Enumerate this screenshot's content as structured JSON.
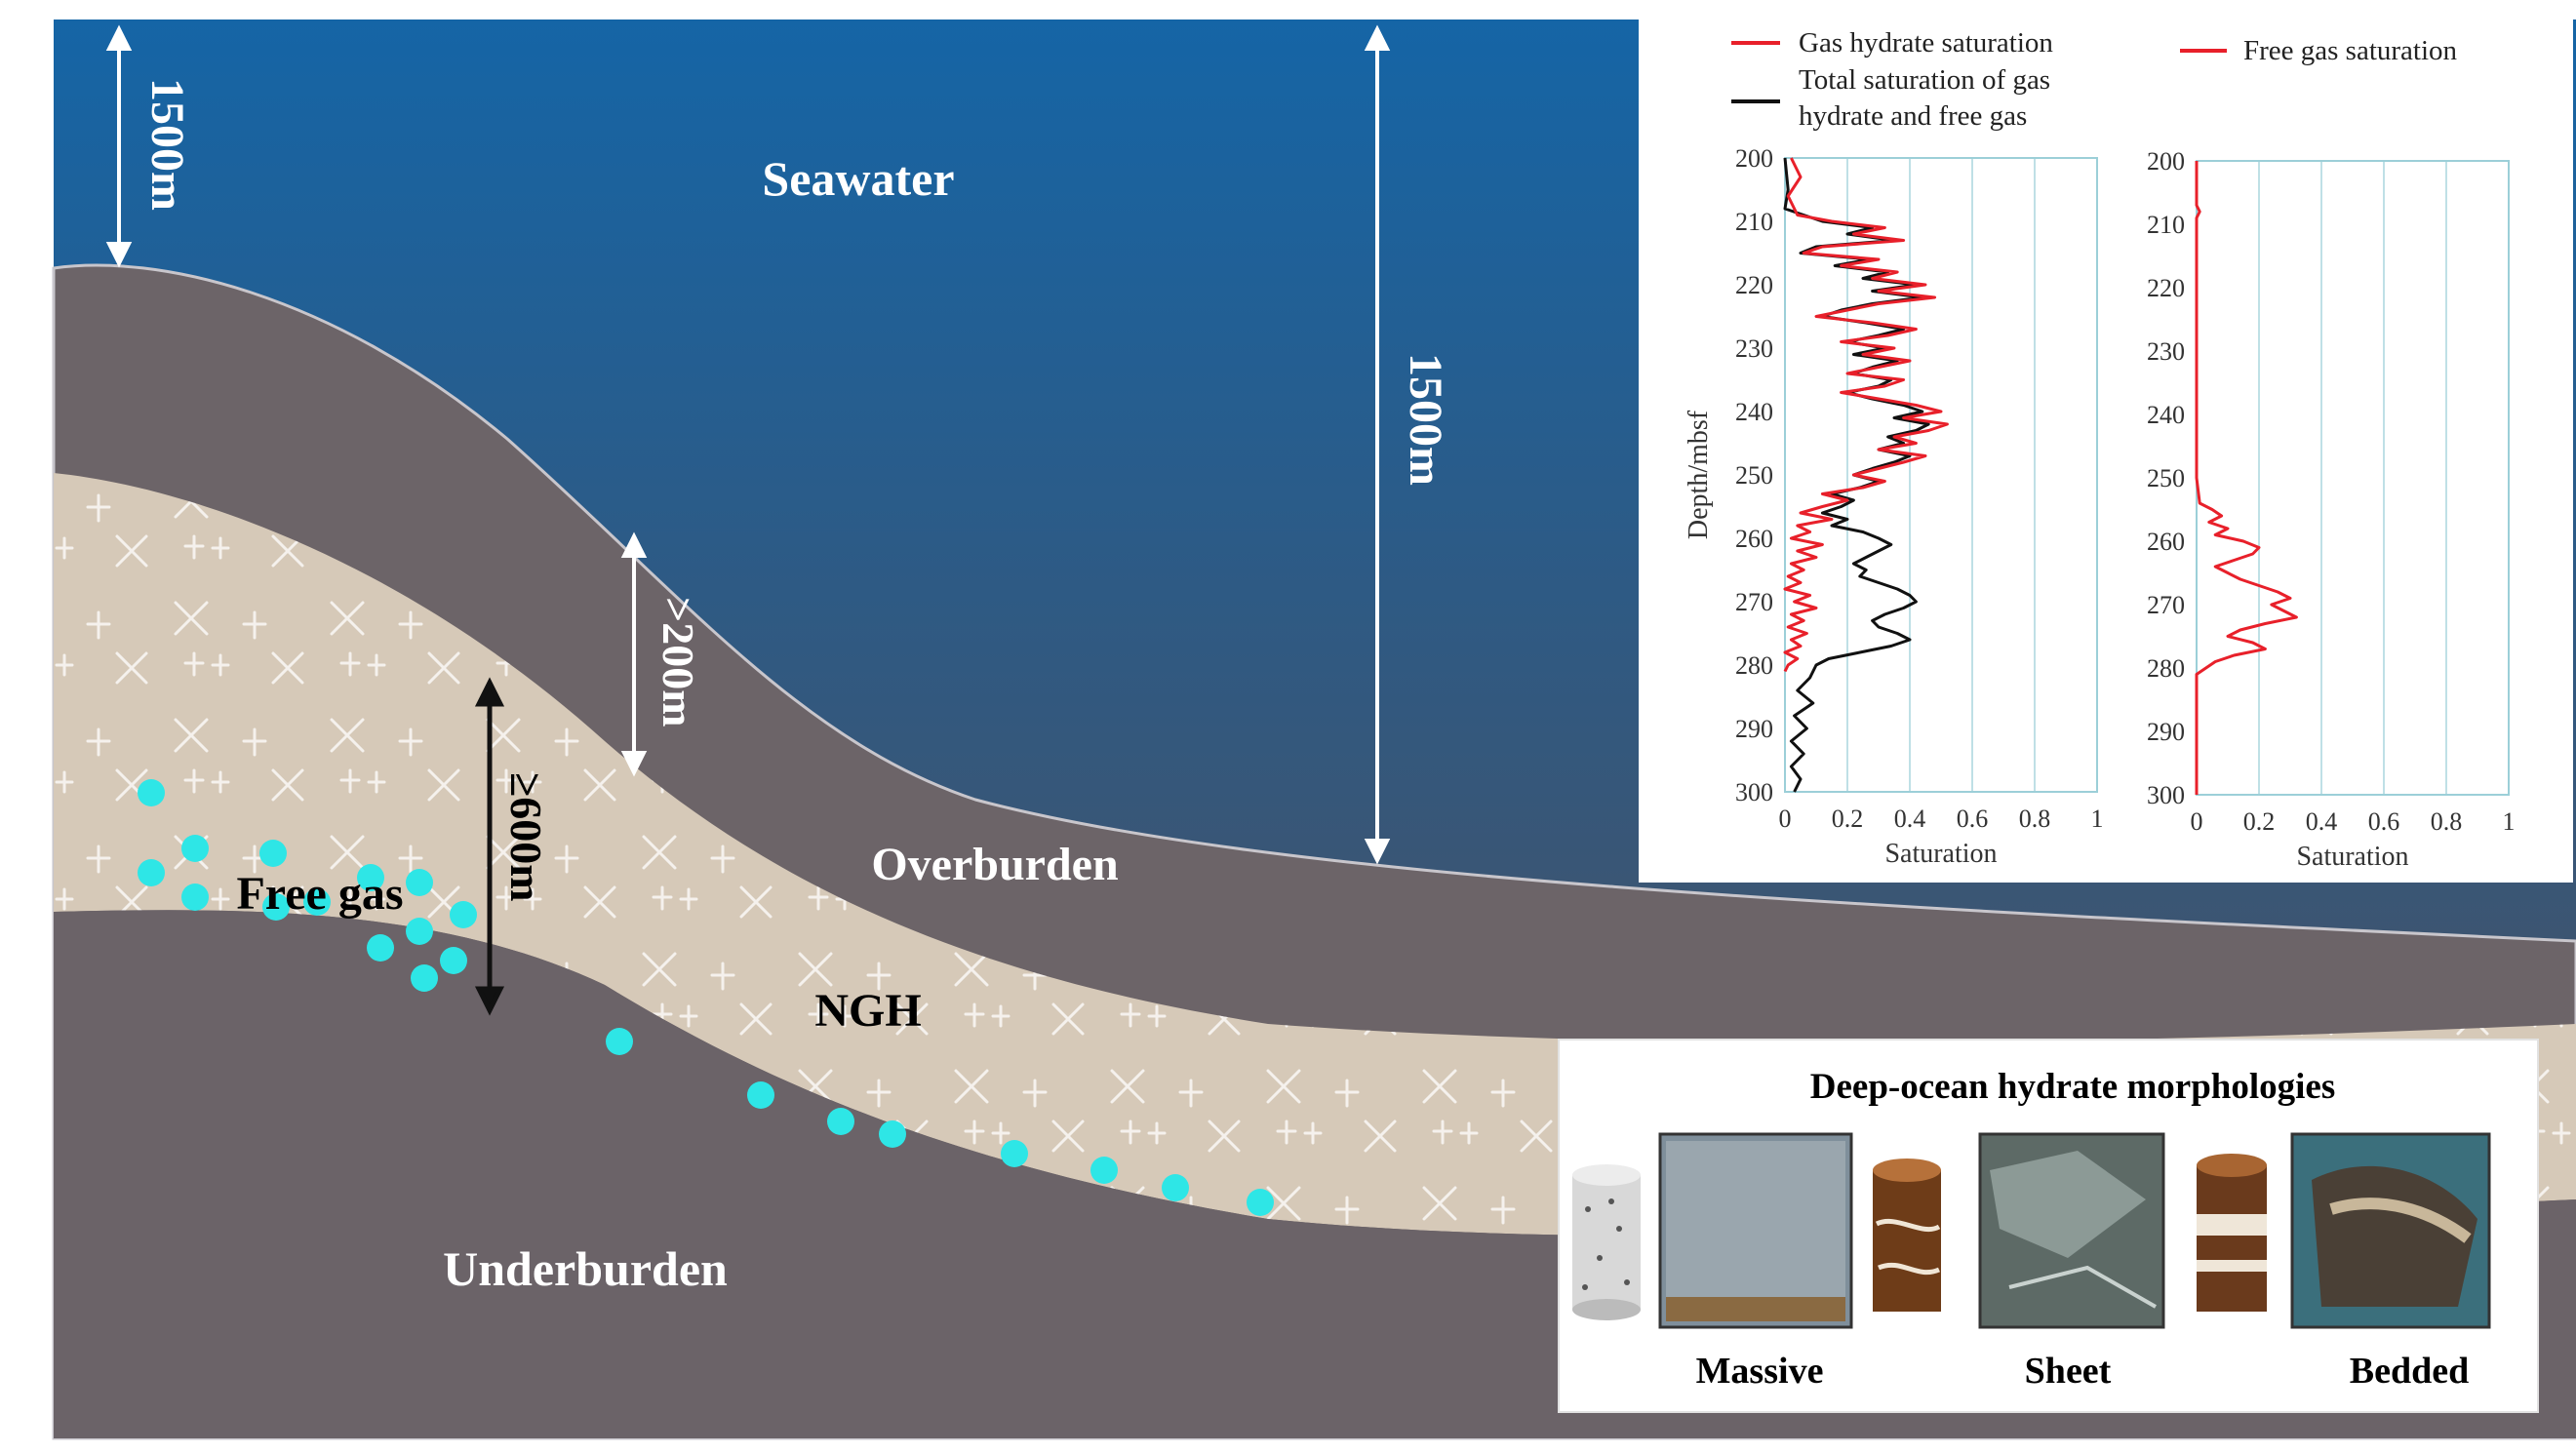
{
  "labels": {
    "seawater": "Seawater",
    "overburden": "Overburden",
    "ngh": "NGH",
    "underburden": "Underburden",
    "free_gas": "Free gas",
    "depth_left": "1500m",
    "depth_right": "1500m",
    "overburden_thickness": ">200m",
    "ngh_thickness": "≥600m"
  },
  "colors": {
    "sea_top": "#1c6aa8",
    "sea_bottom": "#3d4a5c",
    "sediment": "#6c6468",
    "hydrate_layer": "#d6c9b8",
    "gas_bubble": "#2ee6e6",
    "hydrate_saturation": "#e8202a",
    "total_saturation": "#111111",
    "free_gas_saturation": "#e8202a"
  },
  "morphologies": {
    "title": "Deep-ocean hydrate morphologies",
    "items": [
      {
        "label": "Massive"
      },
      {
        "label": "Sheet"
      },
      {
        "label": "Bedded"
      }
    ]
  },
  "chart_data": [
    {
      "type": "line",
      "ylabel": "Depth/mbsf",
      "xlabel": "Saturation",
      "ylim": [
        200,
        300
      ],
      "xlim": [
        0,
        1
      ],
      "yticks": [
        "200",
        "210",
        "220",
        "230",
        "240",
        "250",
        "260",
        "270",
        "280",
        "290",
        "300"
      ],
      "xticks": [
        "0",
        "0.2",
        "0.4",
        "0.6",
        "0.8",
        "1"
      ],
      "grid": true,
      "legend": [
        "Gas hydrate saturation",
        "Total saturation of gas hydrate and free gas"
      ],
      "series": [
        {
          "name": "Gas hydrate saturation",
          "points": [
            [
              200,
              0.02
            ],
            [
              203,
              0.05
            ],
            [
              206,
              0.01
            ],
            [
              209,
              0.04
            ],
            [
              210,
              0.15
            ],
            [
              211,
              0.32
            ],
            [
              212,
              0.22
            ],
            [
              213,
              0.38
            ],
            [
              214,
              0.12
            ],
            [
              215,
              0.06
            ],
            [
              216,
              0.3
            ],
            [
              217,
              0.18
            ],
            [
              218,
              0.36
            ],
            [
              219,
              0.28
            ],
            [
              220,
              0.45
            ],
            [
              221,
              0.3
            ],
            [
              222,
              0.48
            ],
            [
              223,
              0.3
            ],
            [
              224,
              0.2
            ],
            [
              225,
              0.1
            ],
            [
              226,
              0.28
            ],
            [
              227,
              0.42
            ],
            [
              228,
              0.33
            ],
            [
              229,
              0.18
            ],
            [
              230,
              0.35
            ],
            [
              231,
              0.25
            ],
            [
              232,
              0.4
            ],
            [
              233,
              0.3
            ],
            [
              234,
              0.2
            ],
            [
              235,
              0.38
            ],
            [
              236,
              0.32
            ],
            [
              237,
              0.18
            ],
            [
              238,
              0.3
            ],
            [
              239,
              0.42
            ],
            [
              240,
              0.5
            ],
            [
              241,
              0.38
            ],
            [
              242,
              0.52
            ],
            [
              243,
              0.46
            ],
            [
              244,
              0.35
            ],
            [
              245,
              0.42
            ],
            [
              246,
              0.3
            ],
            [
              247,
              0.45
            ],
            [
              248,
              0.38
            ],
            [
              249,
              0.3
            ],
            [
              250,
              0.22
            ],
            [
              251,
              0.32
            ],
            [
              252,
              0.25
            ],
            [
              253,
              0.12
            ],
            [
              254,
              0.2
            ],
            [
              255,
              0.12
            ],
            [
              256,
              0.05
            ],
            [
              257,
              0.15
            ],
            [
              258,
              0.04
            ],
            [
              259,
              0.08
            ],
            [
              260,
              0.02
            ],
            [
              261,
              0.12
            ],
            [
              262,
              0.04
            ],
            [
              263,
              0.1
            ],
            [
              264,
              0.02
            ],
            [
              265,
              0.06
            ],
            [
              266,
              0.01
            ],
            [
              267,
              0.05
            ],
            [
              268,
              0.0
            ],
            [
              269,
              0.08
            ],
            [
              270,
              0.03
            ],
            [
              271,
              0.1
            ],
            [
              272,
              0.02
            ],
            [
              273,
              0.06
            ],
            [
              274,
              0.01
            ],
            [
              275,
              0.07
            ],
            [
              276,
              0.02
            ],
            [
              277,
              0.05
            ],
            [
              278,
              0.0
            ],
            [
              279,
              0.04
            ],
            [
              280,
              0.01
            ],
            [
              281,
              0.0
            ]
          ]
        },
        {
          "name": "Total saturation of gas hydrate and free gas",
          "points": [
            [
              200,
              0.0
            ],
            [
              205,
              0.01
            ],
            [
              208,
              0.0
            ],
            [
              210,
              0.12
            ],
            [
              211,
              0.28
            ],
            [
              212,
              0.2
            ],
            [
              213,
              0.35
            ],
            [
              214,
              0.1
            ],
            [
              215,
              0.05
            ],
            [
              216,
              0.27
            ],
            [
              217,
              0.16
            ],
            [
              218,
              0.33
            ],
            [
              219,
              0.25
            ],
            [
              220,
              0.42
            ],
            [
              221,
              0.28
            ],
            [
              222,
              0.44
            ],
            [
              223,
              0.28
            ],
            [
              224,
              0.18
            ],
            [
              225,
              0.12
            ],
            [
              226,
              0.26
            ],
            [
              227,
              0.38
            ],
            [
              228,
              0.3
            ],
            [
              229,
              0.2
            ],
            [
              230,
              0.32
            ],
            [
              231,
              0.22
            ],
            [
              232,
              0.36
            ],
            [
              233,
              0.28
            ],
            [
              234,
              0.22
            ],
            [
              235,
              0.34
            ],
            [
              236,
              0.3
            ],
            [
              237,
              0.2
            ],
            [
              238,
              0.28
            ],
            [
              239,
              0.38
            ],
            [
              240,
              0.44
            ],
            [
              241,
              0.35
            ],
            [
              242,
              0.46
            ],
            [
              243,
              0.42
            ],
            [
              244,
              0.33
            ],
            [
              245,
              0.38
            ],
            [
              246,
              0.3
            ],
            [
              247,
              0.4
            ],
            [
              248,
              0.35
            ],
            [
              249,
              0.28
            ],
            [
              250,
              0.22
            ],
            [
              251,
              0.3
            ],
            [
              252,
              0.24
            ],
            [
              253,
              0.15
            ],
            [
              254,
              0.22
            ],
            [
              255,
              0.18
            ],
            [
              256,
              0.12
            ],
            [
              257,
              0.2
            ],
            [
              258,
              0.15
            ],
            [
              259,
              0.25
            ],
            [
              260,
              0.3
            ],
            [
              261,
              0.34
            ],
            [
              262,
              0.3
            ],
            [
              263,
              0.26
            ],
            [
              264,
              0.22
            ],
            [
              265,
              0.26
            ],
            [
              266,
              0.24
            ],
            [
              267,
              0.3
            ],
            [
              268,
              0.36
            ],
            [
              269,
              0.4
            ],
            [
              270,
              0.42
            ],
            [
              271,
              0.38
            ],
            [
              272,
              0.32
            ],
            [
              273,
              0.28
            ],
            [
              274,
              0.3
            ],
            [
              275,
              0.36
            ],
            [
              276,
              0.4
            ],
            [
              277,
              0.34
            ],
            [
              278,
              0.24
            ],
            [
              279,
              0.14
            ],
            [
              280,
              0.1
            ],
            [
              282,
              0.08
            ],
            [
              284,
              0.04
            ],
            [
              286,
              0.09
            ],
            [
              288,
              0.03
            ],
            [
              290,
              0.07
            ],
            [
              292,
              0.02
            ],
            [
              294,
              0.06
            ],
            [
              296,
              0.02
            ],
            [
              298,
              0.05
            ],
            [
              300,
              0.03
            ]
          ]
        }
      ]
    },
    {
      "type": "line",
      "xlabel": "Saturation",
      "ylim": [
        200,
        300
      ],
      "xlim": [
        0,
        1
      ],
      "yticks": [
        "200",
        "210",
        "220",
        "230",
        "240",
        "250",
        "260",
        "270",
        "280",
        "290",
        "300"
      ],
      "xticks": [
        "0",
        "0.2",
        "0.4",
        "0.6",
        "0.8",
        "1"
      ],
      "grid": true,
      "legend": [
        "Free gas saturation"
      ],
      "series": [
        {
          "name": "Free gas saturation",
          "points": [
            [
              200,
              0.0
            ],
            [
              207,
              0.0
            ],
            [
              208,
              0.01
            ],
            [
              209,
              0.0
            ],
            [
              250,
              0.0
            ],
            [
              254,
              0.01
            ],
            [
              255,
              0.05
            ],
            [
              256,
              0.08
            ],
            [
              257,
              0.04
            ],
            [
              258,
              0.1
            ],
            [
              259,
              0.06
            ],
            [
              260,
              0.15
            ],
            [
              261,
              0.2
            ],
            [
              262,
              0.18
            ],
            [
              263,
              0.12
            ],
            [
              264,
              0.06
            ],
            [
              265,
              0.1
            ],
            [
              266,
              0.14
            ],
            [
              267,
              0.2
            ],
            [
              268,
              0.26
            ],
            [
              269,
              0.3
            ],
            [
              270,
              0.24
            ],
            [
              271,
              0.28
            ],
            [
              272,
              0.32
            ],
            [
              273,
              0.22
            ],
            [
              274,
              0.14
            ],
            [
              275,
              0.1
            ],
            [
              276,
              0.18
            ],
            [
              277,
              0.22
            ],
            [
              278,
              0.12
            ],
            [
              279,
              0.06
            ],
            [
              280,
              0.03
            ],
            [
              281,
              0.0
            ],
            [
              300,
              0.0
            ]
          ]
        }
      ]
    }
  ]
}
